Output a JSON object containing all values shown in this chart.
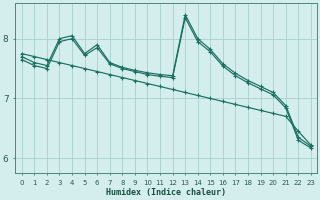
{
  "xlabel": "Humidex (Indice chaleur)",
  "bg_color": "#d4eeee",
  "grid_color": "#aacece",
  "line_color": "#1a7060",
  "xlim_min": -0.5,
  "xlim_max": 23.5,
  "ylim_min": 5.75,
  "ylim_max": 8.6,
  "line1_x": [
    0,
    1,
    2,
    3,
    4,
    5,
    6,
    7,
    8,
    9,
    10,
    11,
    12,
    13,
    14,
    15,
    16,
    17,
    18,
    19,
    20,
    21,
    22,
    23
  ],
  "line1_y": [
    7.75,
    7.7,
    7.65,
    7.6,
    7.55,
    7.5,
    7.45,
    7.4,
    7.35,
    7.3,
    7.25,
    7.2,
    7.15,
    7.1,
    7.05,
    7.0,
    6.95,
    6.9,
    6.85,
    6.8,
    6.75,
    6.7,
    6.45,
    6.22
  ],
  "line2_x": [
    0,
    1,
    2,
    3,
    4,
    5,
    6,
    7,
    8,
    9,
    10,
    11,
    12,
    13,
    14,
    15,
    16,
    17,
    18,
    19,
    20,
    21,
    22,
    23
  ],
  "line2_y": [
    7.7,
    7.6,
    7.55,
    8.0,
    8.05,
    7.75,
    7.9,
    7.6,
    7.52,
    7.47,
    7.43,
    7.4,
    7.38,
    8.4,
    8.0,
    7.82,
    7.58,
    7.42,
    7.3,
    7.2,
    7.1,
    6.88,
    6.35,
    6.2
  ],
  "line3_x": [
    0,
    1,
    2,
    3,
    4,
    5,
    6,
    7,
    8,
    9,
    10,
    11,
    12,
    13,
    14,
    15,
    16,
    17,
    18,
    19,
    20,
    21,
    22,
    23
  ],
  "line3_y": [
    7.65,
    7.55,
    7.5,
    7.95,
    8.0,
    7.72,
    7.85,
    7.58,
    7.5,
    7.45,
    7.4,
    7.37,
    7.35,
    8.35,
    7.95,
    7.78,
    7.54,
    7.38,
    7.26,
    7.16,
    7.06,
    6.84,
    6.3,
    6.17
  ],
  "yticks": [
    6,
    7,
    8
  ],
  "xticks": [
    0,
    1,
    2,
    3,
    4,
    5,
    6,
    7,
    8,
    9,
    10,
    11,
    12,
    13,
    14,
    15,
    16,
    17,
    18,
    19,
    20,
    21,
    22,
    23
  ]
}
